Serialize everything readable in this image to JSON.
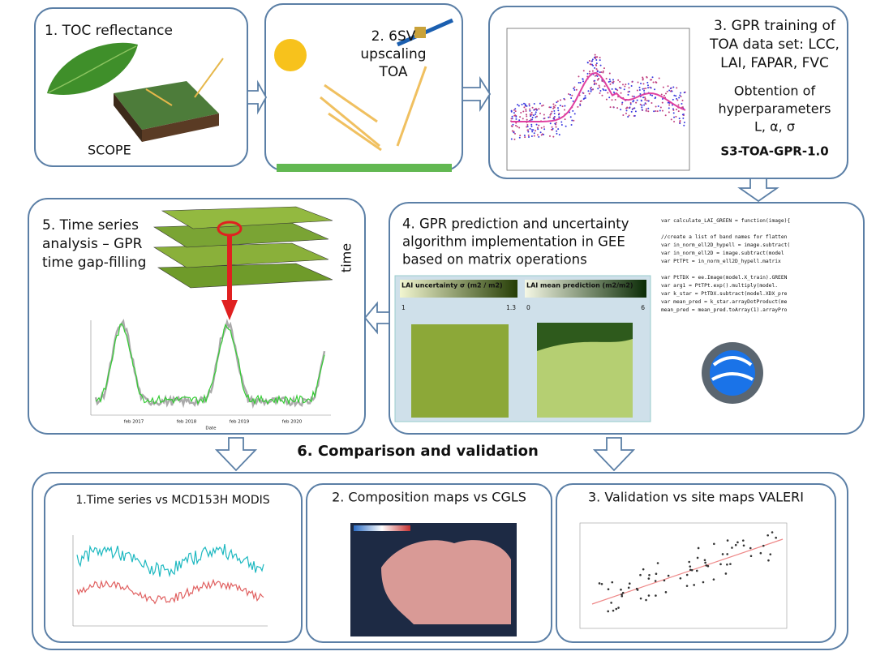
{
  "step1": {
    "title": "1. TOC reflectance",
    "model": "SCOPE"
  },
  "step2": {
    "title_lines": [
      "2. 6SV",
      "upscaling",
      "TOA"
    ]
  },
  "step3": {
    "title_lines": [
      "3. GPR training of",
      "TOA data set: LCC,",
      "LAI, FAPAR, FVC"
    ],
    "note_lines": [
      "Obtention of",
      "hyperparameters",
      "L, α, σ"
    ],
    "product": "S3-TOA-GPR-1.0"
  },
  "step5": {
    "title_lines": [
      "5. Time series",
      "analysis – GPR",
      "time gap-filling"
    ],
    "axis_label": "time",
    "x_labels": [
      "feb 2017",
      "feb 2018",
      "feb 2019",
      "feb 2020"
    ],
    "x_title": "Date"
  },
  "step4": {
    "title_lines": [
      "4. GPR prediction and uncertainty",
      "algorithm implementation in GEE",
      "based on matrix operations"
    ],
    "panels": [
      {
        "title": "LAI uncertainty σ (m2 / m2)",
        "min": "1",
        "max": "1.3"
      },
      {
        "title": "LAI mean prediction (m2/m2)",
        "min": "0",
        "max": "6"
      }
    ],
    "code": [
      "var calculate_LAI_GREEN = function(image){",
      "",
      "//create a list of band names for flatten",
      "var in_norm_ell2D_hypell = image.subtract(",
      "var in_norm_ell2D = image.subtract(model",
      "var PtTPt  = in_norm_ell2D_hypell.matrix",
      "",
      "var PtTDX  = ee.Image(model.X_train).GREEN",
      "var arg1   = PtTPt.exp().multiply(model.",
      "var k_star = PtTDX.subtract(model.XDX_pre",
      "var mean_pred = k_star.arrayDotProduct(me",
      "mean_pred = mean_pred.toArray(1).arrayPro"
    ]
  },
  "step6": {
    "title": "6. Comparison and validation",
    "items": [
      "1.Time series vs MCD153H MODIS",
      "2. Composition maps vs CGLS",
      "3. Validation vs site maps VALERI"
    ]
  }
}
